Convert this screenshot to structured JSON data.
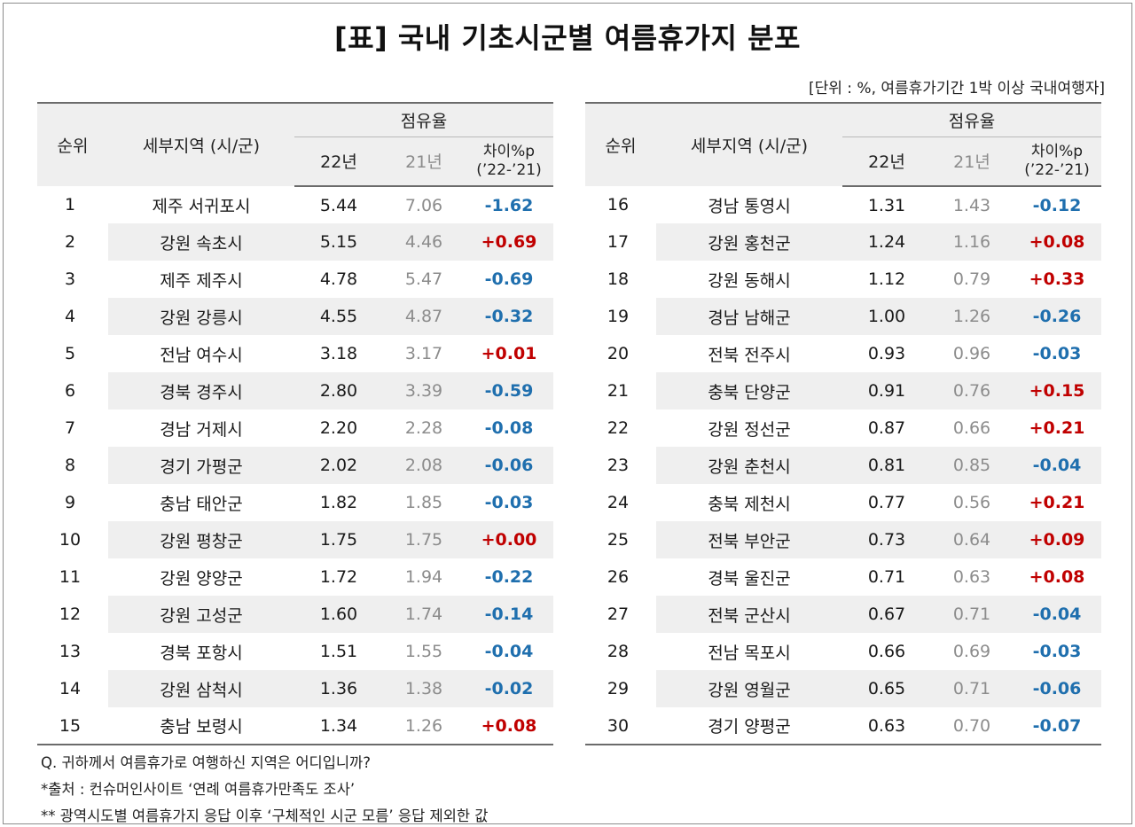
{
  "title": "[표] 국내 기초시군별 여름휴가지 분포",
  "unit_note": "[단위 : %, 여름휴가기간 1박 이상 국내여행자]",
  "headers": {
    "rank": "순위",
    "region": "세부지역 (시/군)",
    "share": "점유율",
    "y22": "22년",
    "y21": "21년",
    "diff_line1": "차이%p",
    "diff_line2": "(’22-’21)"
  },
  "left_rows": [
    {
      "rank": "1",
      "region": "제주 서귀포시",
      "y22": "5.44",
      "y21": "7.06",
      "diff": "-1.62",
      "sign": "neg"
    },
    {
      "rank": "2",
      "region": "강원 속초시",
      "y22": "5.15",
      "y21": "4.46",
      "diff": "+0.69",
      "sign": "pos"
    },
    {
      "rank": "3",
      "region": "제주 제주시",
      "y22": "4.78",
      "y21": "5.47",
      "diff": "-0.69",
      "sign": "neg"
    },
    {
      "rank": "4",
      "region": "강원 강릉시",
      "y22": "4.55",
      "y21": "4.87",
      "diff": "-0.32",
      "sign": "neg"
    },
    {
      "rank": "5",
      "region": "전남 여수시",
      "y22": "3.18",
      "y21": "3.17",
      "diff": "+0.01",
      "sign": "pos"
    },
    {
      "rank": "6",
      "region": "경북 경주시",
      "y22": "2.80",
      "y21": "3.39",
      "diff": "-0.59",
      "sign": "neg"
    },
    {
      "rank": "7",
      "region": "경남 거제시",
      "y22": "2.20",
      "y21": "2.28",
      "diff": "-0.08",
      "sign": "neg"
    },
    {
      "rank": "8",
      "region": "경기 가평군",
      "y22": "2.02",
      "y21": "2.08",
      "diff": "-0.06",
      "sign": "neg"
    },
    {
      "rank": "9",
      "region": "충남 태안군",
      "y22": "1.82",
      "y21": "1.85",
      "diff": "-0.03",
      "sign": "neg"
    },
    {
      "rank": "10",
      "region": "강원 평창군",
      "y22": "1.75",
      "y21": "1.75",
      "diff": "+0.00",
      "sign": "pos"
    },
    {
      "rank": "11",
      "region": "강원 양양군",
      "y22": "1.72",
      "y21": "1.94",
      "diff": "-0.22",
      "sign": "neg"
    },
    {
      "rank": "12",
      "region": "강원 고성군",
      "y22": "1.60",
      "y21": "1.74",
      "diff": "-0.14",
      "sign": "neg"
    },
    {
      "rank": "13",
      "region": "경북 포항시",
      "y22": "1.51",
      "y21": "1.55",
      "diff": "-0.04",
      "sign": "neg"
    },
    {
      "rank": "14",
      "region": "강원 삼척시",
      "y22": "1.36",
      "y21": "1.38",
      "diff": "-0.02",
      "sign": "neg"
    },
    {
      "rank": "15",
      "region": "충남 보령시",
      "y22": "1.34",
      "y21": "1.26",
      "diff": "+0.08",
      "sign": "pos"
    }
  ],
  "right_rows": [
    {
      "rank": "16",
      "region": "경남 통영시",
      "y22": "1.31",
      "y21": "1.43",
      "diff": "-0.12",
      "sign": "neg"
    },
    {
      "rank": "17",
      "region": "강원 홍천군",
      "y22": "1.24",
      "y21": "1.16",
      "diff": "+0.08",
      "sign": "pos"
    },
    {
      "rank": "18",
      "region": "강원 동해시",
      "y22": "1.12",
      "y21": "0.79",
      "diff": "+0.33",
      "sign": "pos"
    },
    {
      "rank": "19",
      "region": "경남 남해군",
      "y22": "1.00",
      "y21": "1.26",
      "diff": "-0.26",
      "sign": "neg"
    },
    {
      "rank": "20",
      "region": "전북 전주시",
      "y22": "0.93",
      "y21": "0.96",
      "diff": "-0.03",
      "sign": "neg"
    },
    {
      "rank": "21",
      "region": "충북 단양군",
      "y22": "0.91",
      "y21": "0.76",
      "diff": "+0.15",
      "sign": "pos"
    },
    {
      "rank": "22",
      "region": "강원 정선군",
      "y22": "0.87",
      "y21": "0.66",
      "diff": "+0.21",
      "sign": "pos"
    },
    {
      "rank": "23",
      "region": "강원 춘천시",
      "y22": "0.81",
      "y21": "0.85",
      "diff": "-0.04",
      "sign": "neg"
    },
    {
      "rank": "24",
      "region": "충북 제천시",
      "y22": "0.77",
      "y21": "0.56",
      "diff": "+0.21",
      "sign": "pos"
    },
    {
      "rank": "25",
      "region": "전북 부안군",
      "y22": "0.73",
      "y21": "0.64",
      "diff": "+0.09",
      "sign": "pos"
    },
    {
      "rank": "26",
      "region": "경북 울진군",
      "y22": "0.71",
      "y21": "0.63",
      "diff": "+0.08",
      "sign": "pos"
    },
    {
      "rank": "27",
      "region": "전북 군산시",
      "y22": "0.67",
      "y21": "0.71",
      "diff": "-0.04",
      "sign": "neg"
    },
    {
      "rank": "28",
      "region": "전남 목포시",
      "y22": "0.66",
      "y21": "0.69",
      "diff": "-0.03",
      "sign": "neg"
    },
    {
      "rank": "29",
      "region": "강원 영월군",
      "y22": "0.65",
      "y21": "0.71",
      "diff": "-0.06",
      "sign": "neg"
    },
    {
      "rank": "30",
      "region": "경기 양평군",
      "y22": "0.63",
      "y21": "0.70",
      "diff": "-0.07",
      "sign": "neg"
    }
  ],
  "notes": [
    "Q. 귀하께서 여름휴가로 여행하신 지역은 어디입니까?",
    "*출처 : 컨슈머인사이트 ‘연례 여름휴가만족도 조사’",
    "** 광역시도별 여름휴가지 응답 이후 ‘구체적인 시군 모름’ 응답 제외한 값"
  ],
  "colors": {
    "negative": "#1f6fae",
    "positive": "#c00000",
    "prev_year": "#8c8c8c",
    "band": "#efefef"
  }
}
